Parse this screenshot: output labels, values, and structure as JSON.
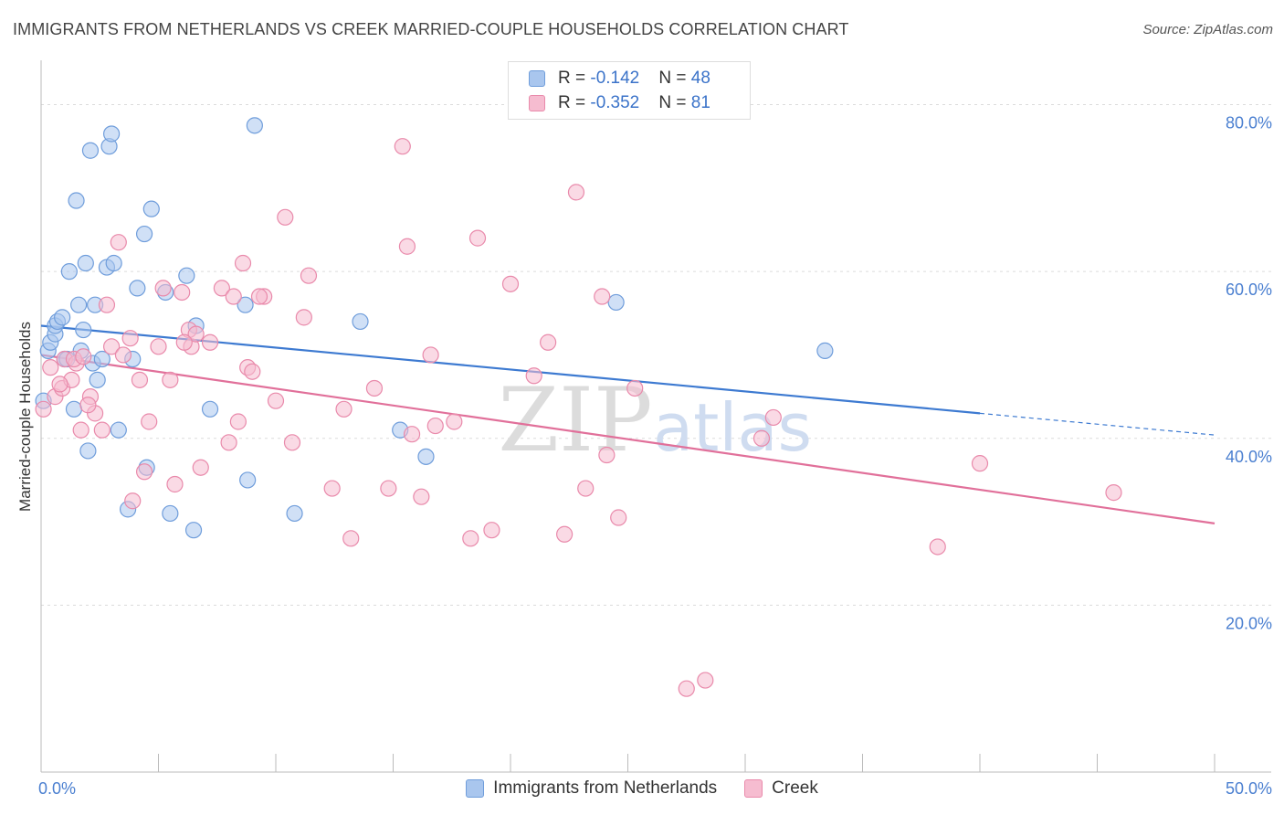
{
  "title": "IMMIGRANTS FROM NETHERLANDS VS CREEK MARRIED-COUPLE HOUSEHOLDS CORRELATION CHART",
  "source": "Source: ZipAtlas.com",
  "watermark": {
    "zip": "ZIP",
    "atlas": "atlas"
  },
  "legend_stats": [
    {
      "r_label": "R = ",
      "r_value": "-0.142",
      "n_label": "N = ",
      "n_value": "48",
      "color": "#a9c6ee",
      "border": "#6f9ddb"
    },
    {
      "r_label": "R = ",
      "r_value": "-0.352",
      "n_label": "N = ",
      "n_value": "81",
      "color": "#f6bcd0",
      "border": "#e98aab"
    }
  ],
  "chart_data": {
    "type": "scatter",
    "ylabel": "Married-couple Households",
    "xlim": [
      0,
      50
    ],
    "ylim": [
      0,
      84
    ],
    "x_tick_labels": [
      "0.0%",
      "50.0%"
    ],
    "y_ticks": [
      {
        "value": 20,
        "label": "20.0%"
      },
      {
        "value": 40,
        "label": "40.0%"
      },
      {
        "value": 60,
        "label": "60.0%"
      },
      {
        "value": 80,
        "label": "80.0%"
      }
    ],
    "grid": "horizontal dashed",
    "legend_position": "bottom",
    "series": [
      {
        "name": "Immigrants from Netherlands",
        "color": "#a9c6ee",
        "stroke": "#6f9ddb",
        "trend": {
          "x0": 0,
          "y0": 53.5,
          "x1": 40,
          "y1": 43.0,
          "dashed_to": 50,
          "dashed_y": 40.4,
          "color": "#3d7ad1"
        },
        "points": [
          [
            0.3,
            50.5
          ],
          [
            0.4,
            51.5
          ],
          [
            0.6,
            52.5
          ],
          [
            0.6,
            53.5
          ],
          [
            0.7,
            54.0
          ],
          [
            0.9,
            54.5
          ],
          [
            1.0,
            49.5
          ],
          [
            1.1,
            49.5
          ],
          [
            1.2,
            60.0
          ],
          [
            1.4,
            43.5
          ],
          [
            1.5,
            68.5
          ],
          [
            1.6,
            56.0
          ],
          [
            1.7,
            50.5
          ],
          [
            1.8,
            53.0
          ],
          [
            1.9,
            61.0
          ],
          [
            2.0,
            38.5
          ],
          [
            2.1,
            74.5
          ],
          [
            2.2,
            49.0
          ],
          [
            2.3,
            56.0
          ],
          [
            2.4,
            47.0
          ],
          [
            2.6,
            49.5
          ],
          [
            2.8,
            60.5
          ],
          [
            2.9,
            75.0
          ],
          [
            3.0,
            76.5
          ],
          [
            3.1,
            61.0
          ],
          [
            3.3,
            41.0
          ],
          [
            3.7,
            31.5
          ],
          [
            3.9,
            49.5
          ],
          [
            4.1,
            58.0
          ],
          [
            4.4,
            64.5
          ],
          [
            4.5,
            36.5
          ],
          [
            4.7,
            67.5
          ],
          [
            5.3,
            57.5
          ],
          [
            5.5,
            31.0
          ],
          [
            6.2,
            59.5
          ],
          [
            6.5,
            29.0
          ],
          [
            6.6,
            53.5
          ],
          [
            7.2,
            43.5
          ],
          [
            8.7,
            56.0
          ],
          [
            8.8,
            35.0
          ],
          [
            9.1,
            77.5
          ],
          [
            10.8,
            31.0
          ],
          [
            13.6,
            54.0
          ],
          [
            15.3,
            41.0
          ],
          [
            16.4,
            37.8
          ],
          [
            24.5,
            56.3
          ],
          [
            33.4,
            50.5
          ],
          [
            0.1,
            44.5
          ]
        ]
      },
      {
        "name": "Creek",
        "color": "#f6bcd0",
        "stroke": "#e98aab",
        "trend": {
          "x0": 0,
          "y0": 50.0,
          "x1": 50,
          "y1": 29.8,
          "color": "#e1709a"
        },
        "points": [
          [
            0.1,
            43.5
          ],
          [
            0.4,
            48.5
          ],
          [
            0.6,
            45.0
          ],
          [
            0.9,
            46.0
          ],
          [
            1.0,
            49.5
          ],
          [
            1.3,
            47.0
          ],
          [
            1.5,
            49.0
          ],
          [
            1.7,
            41.0
          ],
          [
            2.1,
            45.0
          ],
          [
            2.3,
            43.0
          ],
          [
            2.6,
            41.0
          ],
          [
            2.8,
            56.0
          ],
          [
            3.0,
            51.0
          ],
          [
            3.3,
            63.5
          ],
          [
            3.5,
            50.0
          ],
          [
            3.8,
            52.0
          ],
          [
            3.9,
            32.5
          ],
          [
            4.2,
            47.0
          ],
          [
            4.4,
            36.0
          ],
          [
            4.6,
            42.0
          ],
          [
            5.0,
            51.0
          ],
          [
            5.2,
            58.0
          ],
          [
            5.5,
            47.0
          ],
          [
            5.7,
            34.5
          ],
          [
            6.0,
            57.5
          ],
          [
            6.3,
            53.0
          ],
          [
            6.4,
            51.0
          ],
          [
            6.6,
            52.5
          ],
          [
            6.8,
            36.5
          ],
          [
            7.2,
            51.5
          ],
          [
            7.7,
            58.0
          ],
          [
            8.0,
            39.5
          ],
          [
            8.2,
            57.0
          ],
          [
            8.4,
            42.0
          ],
          [
            8.6,
            61.0
          ],
          [
            8.8,
            48.5
          ],
          [
            9.0,
            48.0
          ],
          [
            9.5,
            57.0
          ],
          [
            10.0,
            44.5
          ],
          [
            10.4,
            66.5
          ],
          [
            10.7,
            39.5
          ],
          [
            11.2,
            54.5
          ],
          [
            11.4,
            59.5
          ],
          [
            12.4,
            34.0
          ],
          [
            12.9,
            43.5
          ],
          [
            13.2,
            28.0
          ],
          [
            14.2,
            46.0
          ],
          [
            14.8,
            34.0
          ],
          [
            15.4,
            75.0
          ],
          [
            15.6,
            63.0
          ],
          [
            15.8,
            40.5
          ],
          [
            16.2,
            33.0
          ],
          [
            16.6,
            50.0
          ],
          [
            16.8,
            41.5
          ],
          [
            17.6,
            42.0
          ],
          [
            18.3,
            28.0
          ],
          [
            18.6,
            64.0
          ],
          [
            19.2,
            29.0
          ],
          [
            20.0,
            58.5
          ],
          [
            21.0,
            47.5
          ],
          [
            21.6,
            51.5
          ],
          [
            22.3,
            28.5
          ],
          [
            22.8,
            69.5
          ],
          [
            23.2,
            34.0
          ],
          [
            23.9,
            57.0
          ],
          [
            24.1,
            38.0
          ],
          [
            24.6,
            30.5
          ],
          [
            25.3,
            46.0
          ],
          [
            27.5,
            10.0
          ],
          [
            28.3,
            11.0
          ],
          [
            30.7,
            40.0
          ],
          [
            31.2,
            42.5
          ],
          [
            38.2,
            27.0
          ],
          [
            40.0,
            37.0
          ],
          [
            45.7,
            33.5
          ],
          [
            6.1,
            51.5
          ],
          [
            9.3,
            57.0
          ],
          [
            2.0,
            44.0
          ],
          [
            0.8,
            46.5
          ],
          [
            1.4,
            49.5
          ],
          [
            1.8,
            49.8
          ]
        ]
      }
    ]
  }
}
